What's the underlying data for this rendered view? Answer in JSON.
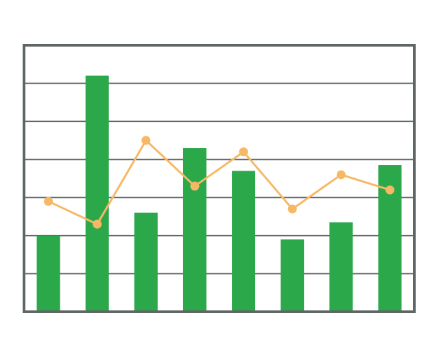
{
  "chart_data": {
    "type": "bar",
    "title": "",
    "xlabel": "",
    "ylabel": "",
    "ylim": [
      0,
      7
    ],
    "grid": true,
    "categories": [
      "",
      "",
      "",
      "",
      "",
      "",
      "",
      ""
    ],
    "series": [
      {
        "type": "bar",
        "values": [
          2.0,
          6.2,
          2.6,
          4.3,
          3.7,
          1.9,
          2.35,
          3.85
        ]
      },
      {
        "type": "line",
        "values": [
          2.9,
          2.3,
          4.5,
          3.3,
          4.2,
          2.7,
          3.6,
          3.2
        ]
      }
    ],
    "colors": {
      "bar": "#2aa84a",
      "line": "#f7b866",
      "frame": "#5f6664",
      "grid": "#5f6664"
    }
  }
}
